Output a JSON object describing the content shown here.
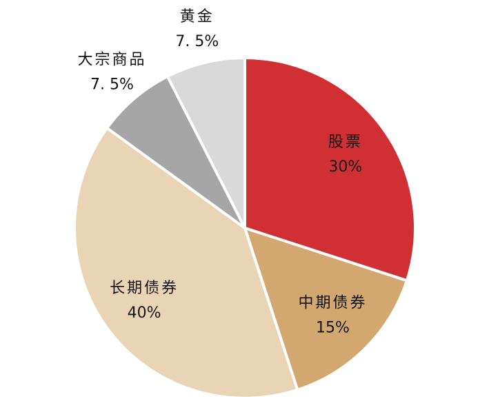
{
  "chart_data": {
    "type": "pie",
    "categories": [
      "股票",
      "中期债券",
      "长期债券",
      "大宗商品",
      "黄金"
    ],
    "values": [
      30,
      15,
      40,
      7.5,
      7.5
    ],
    "value_labels": [
      "30%",
      "15%",
      "40%",
      "7. 5%",
      "7. 5%"
    ],
    "colors": [
      "#d03033",
      "#d3a870",
      "#e9d4b5",
      "#a6a6a6",
      "#d9d9d9"
    ]
  }
}
